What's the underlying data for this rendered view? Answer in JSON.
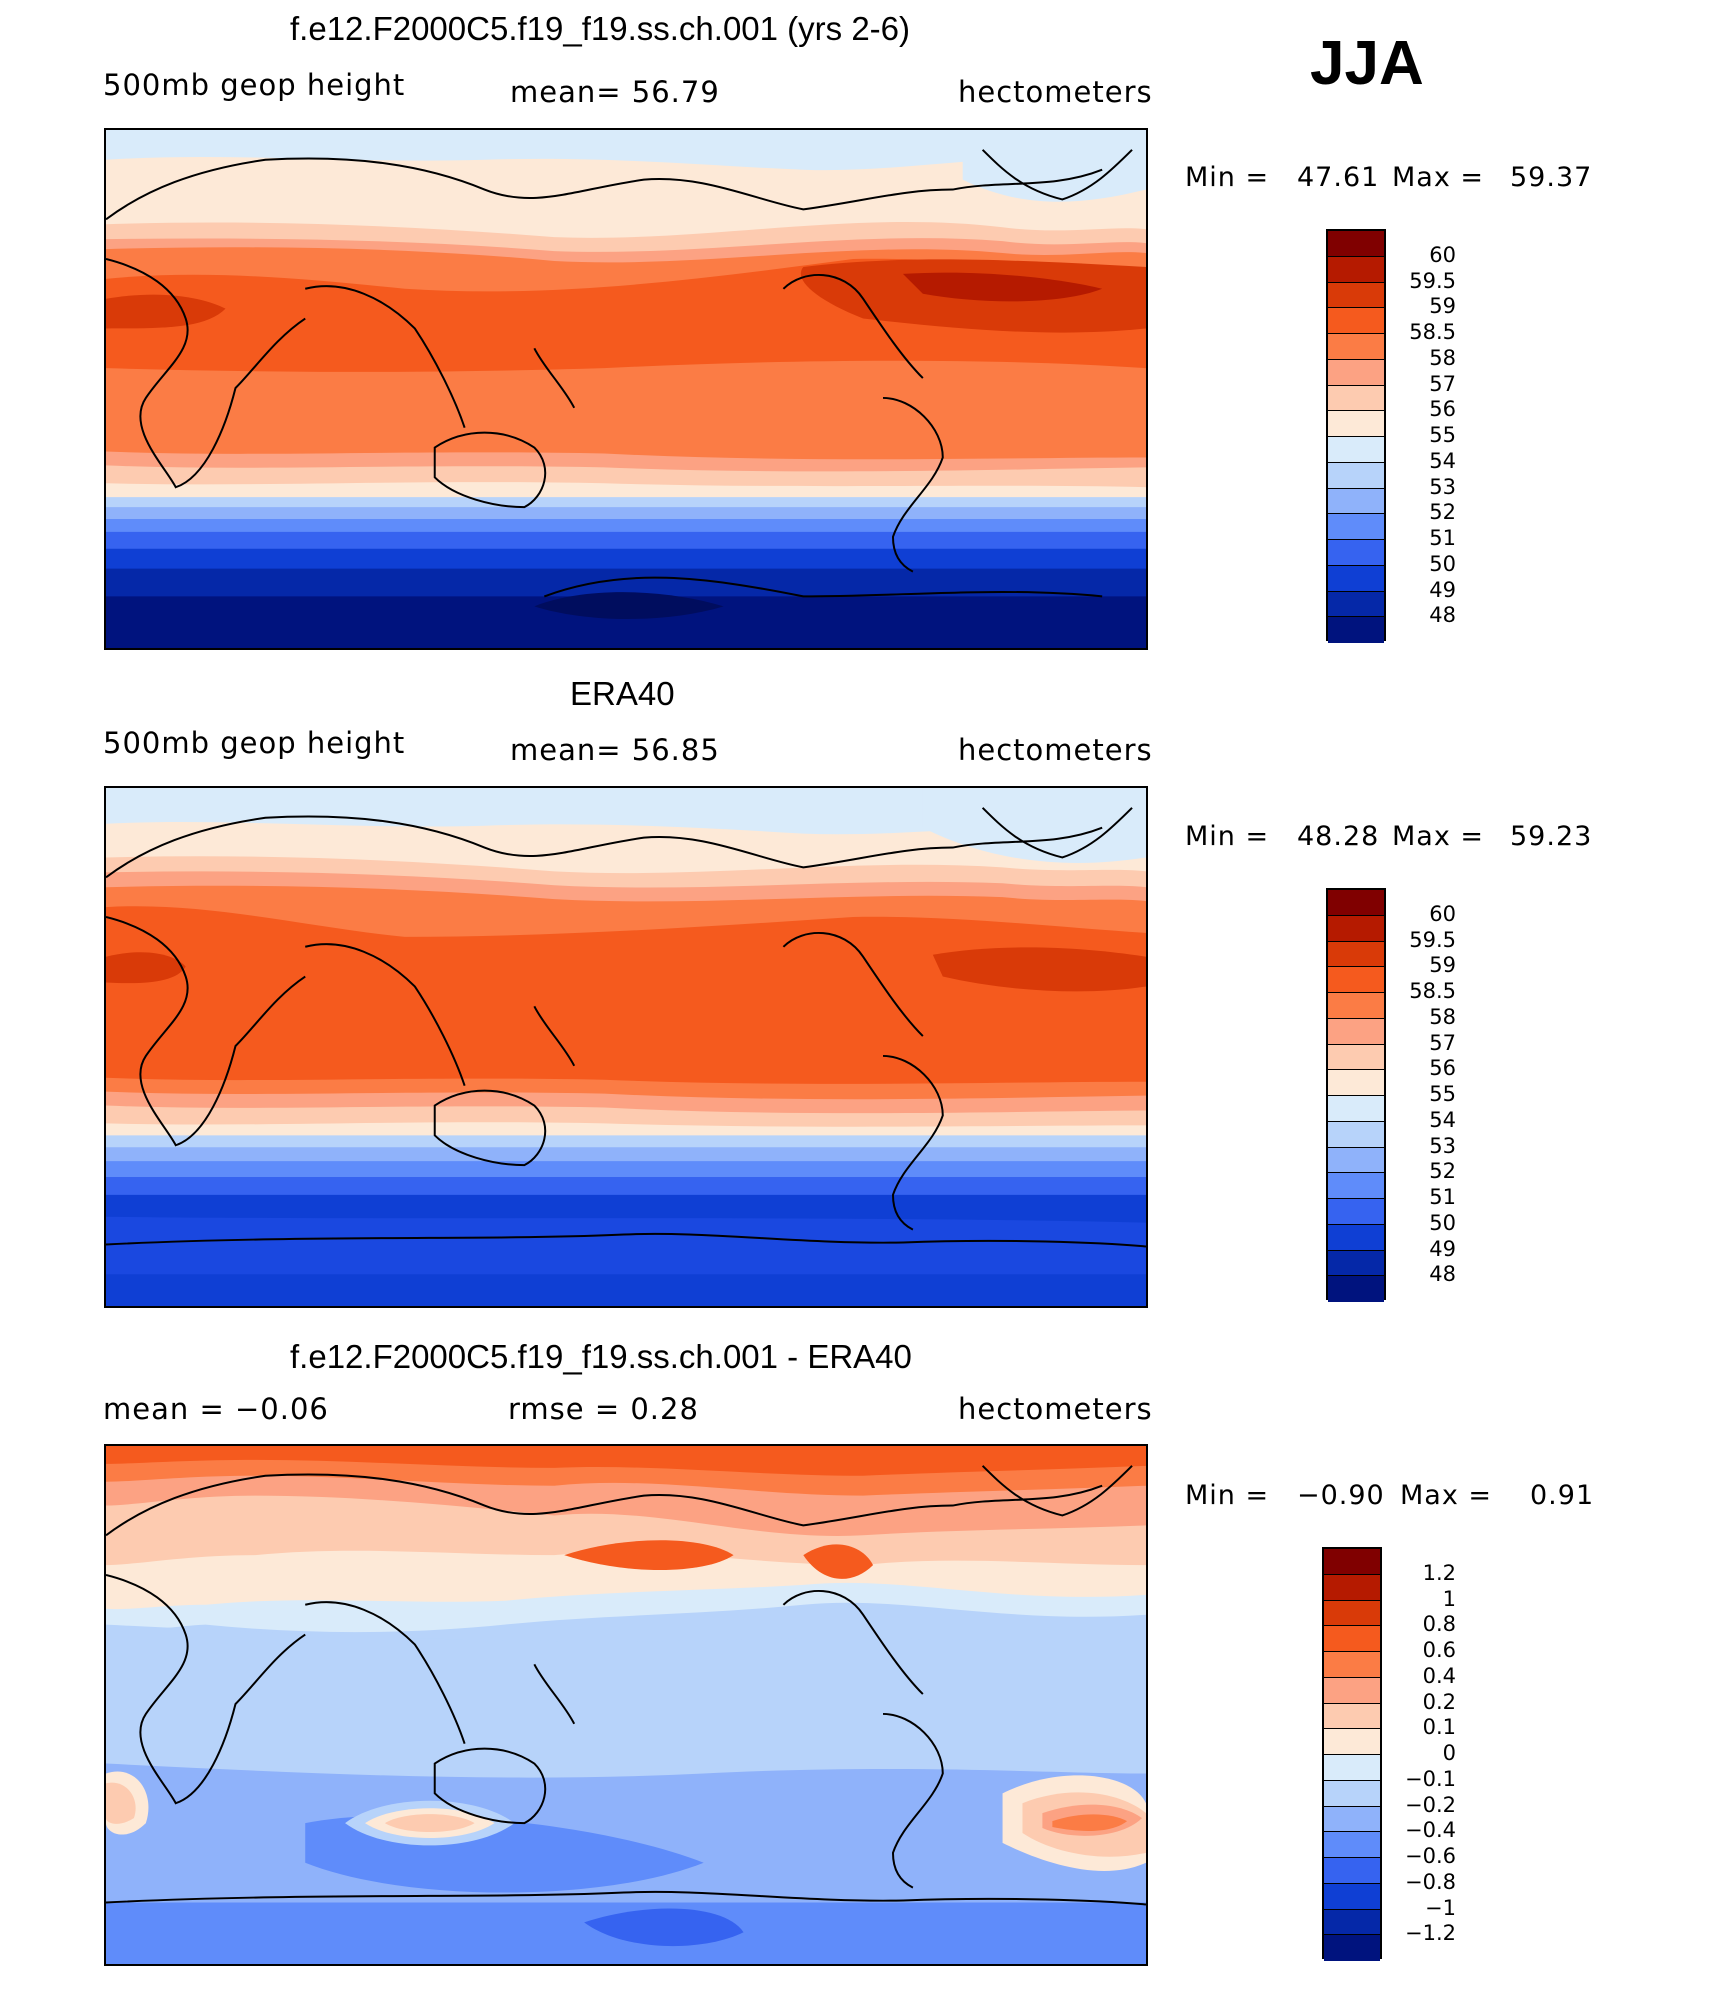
{
  "season": "JJA",
  "panels": [
    {
      "title": "f.e12.F2000C5.f19_f19.ss.ch.001 (yrs 2-6)",
      "left_label": "500mb  geop  height",
      "center_label": "mean=   56.79",
      "right_label": "hectometers",
      "minmax": {
        "min_label": "Min  =",
        "min": "47.61",
        "max_label": "Max  =",
        "max": "59.37"
      },
      "colorbar": {
        "labels": [
          "60",
          "59.5",
          "59",
          "58.5",
          "58",
          "57",
          "56",
          "55",
          "54",
          "53",
          "52",
          "51",
          "50",
          "49",
          "48"
        ],
        "colors": [
          "#800000",
          "#b51a00",
          "#d93a08",
          "#f55a1e",
          "#fb7c45",
          "#fca283",
          "#fdcbb0",
          "#fde9d7",
          "#d9ebfa",
          "#b7d3fa",
          "#8fb2fa",
          "#5f8cfa",
          "#3663f0",
          "#0f3fd4",
          "#0528a8",
          "#00137e"
        ]
      }
    },
    {
      "title": "ERA40",
      "left_label": "500mb  geop  height",
      "center_label": "mean=   56.85",
      "right_label": "hectometers",
      "minmax": {
        "min_label": "Min  =",
        "min": "48.28",
        "max_label": "Max  =",
        "max": "59.23"
      },
      "colorbar": {
        "labels": [
          "60",
          "59.5",
          "59",
          "58.5",
          "58",
          "57",
          "56",
          "55",
          "54",
          "53",
          "52",
          "51",
          "50",
          "49",
          "48"
        ],
        "colors": [
          "#800000",
          "#b51a00",
          "#d93a08",
          "#f55a1e",
          "#fb7c45",
          "#fca283",
          "#fdcbb0",
          "#fde9d7",
          "#d9ebfa",
          "#b7d3fa",
          "#8fb2fa",
          "#5f8cfa",
          "#3663f0",
          "#0f3fd4",
          "#0528a8",
          "#00137e"
        ]
      }
    },
    {
      "title": "f.e12.F2000C5.f19_f19.ss.ch.001 - ERA40",
      "left_label": "mean  =    −0.06",
      "center_label": "rmse  =     0.28",
      "right_label": "hectometers",
      "minmax": {
        "min_label": "Min  =",
        "min": "−0.90",
        "max_label": "Max  =",
        "max": "0.91"
      },
      "colorbar": {
        "labels": [
          "1.2",
          "1",
          "0.8",
          "0.6",
          "0.4",
          "0.2",
          "0.1",
          "0",
          "−0.1",
          "−0.2",
          "−0.4",
          "−0.6",
          "−0.8",
          "−1",
          "−1.2"
        ],
        "colors": [
          "#800000",
          "#b51a00",
          "#d93a08",
          "#f55a1e",
          "#fb7c45",
          "#fca283",
          "#fdcbb0",
          "#fde9d7",
          "#d9ebfa",
          "#b7d3fa",
          "#8fb2fa",
          "#5f8cfa",
          "#3663f0",
          "#0f3fd4",
          "#0528a8",
          "#00137e"
        ]
      }
    }
  ]
}
